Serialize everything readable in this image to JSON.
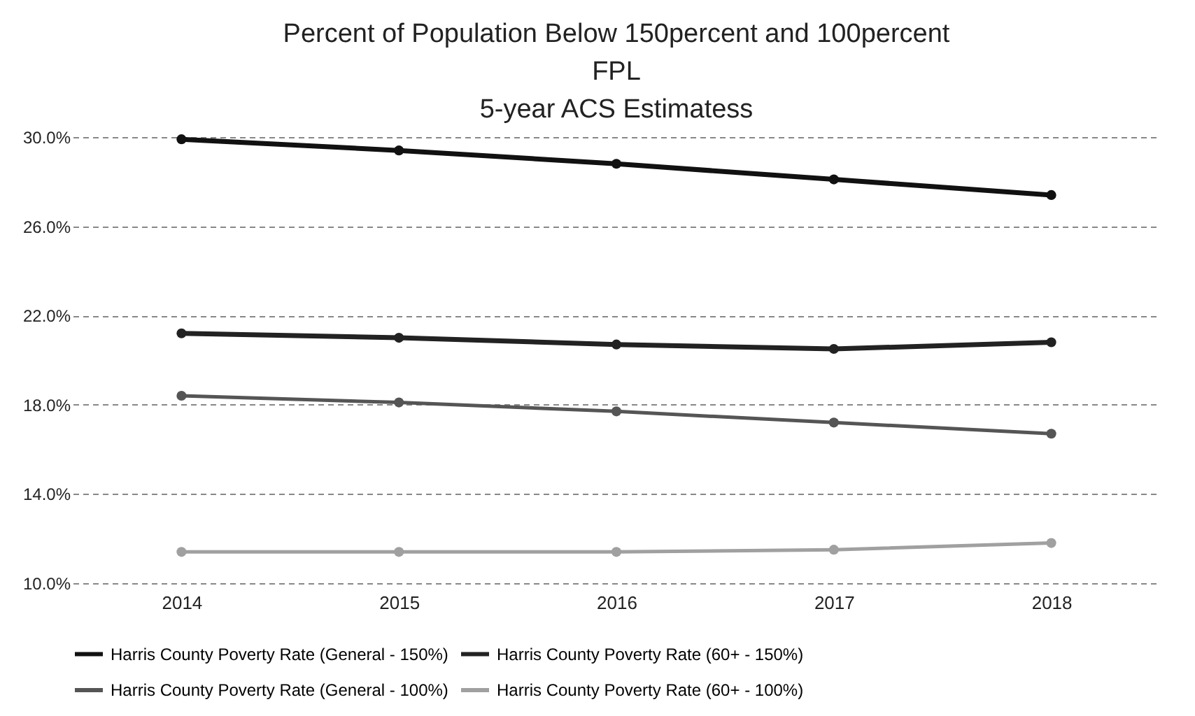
{
  "chart_data": {
    "type": "line",
    "title": "Percent of Population Below 150percent and 100percent\nFPL\n5-year ACS Estimatess",
    "categories": [
      "2014",
      "2015",
      "2016",
      "2017",
      "2018"
    ],
    "series": [
      {
        "name": "Harris County Poverty Rate (General - 150%)",
        "color": "#111111",
        "values": [
          29.9,
          29.4,
          28.8,
          28.1,
          27.4
        ]
      },
      {
        "name": "Harris County Poverty Rate (60+ - 150%)",
        "color": "#222222",
        "values": [
          21.2,
          21.0,
          20.7,
          20.5,
          20.8
        ]
      },
      {
        "name": "Harris County Poverty Rate (General - 100%)",
        "color": "#555555",
        "values": [
          18.4,
          18.1,
          17.7,
          17.2,
          16.7
        ]
      },
      {
        "name": "Harris County Poverty Rate (60+ - 100%)",
        "color": "#a0a0a0",
        "values": [
          11.4,
          11.4,
          11.4,
          11.5,
          11.8
        ]
      }
    ],
    "ylim": [
      10,
      30
    ],
    "yticks": [
      {
        "value": 10,
        "label": "10.0%"
      },
      {
        "value": 14,
        "label": "14.0%"
      },
      {
        "value": 18,
        "label": "18.0%"
      },
      {
        "value": 22,
        "label": "22.0%"
      },
      {
        "value": 26,
        "label": "26.0%"
      },
      {
        "value": 30,
        "label": "30.0%"
      }
    ],
    "grid": "y",
    "legend": "bottom",
    "marker": "circle",
    "line_style": "solid"
  }
}
